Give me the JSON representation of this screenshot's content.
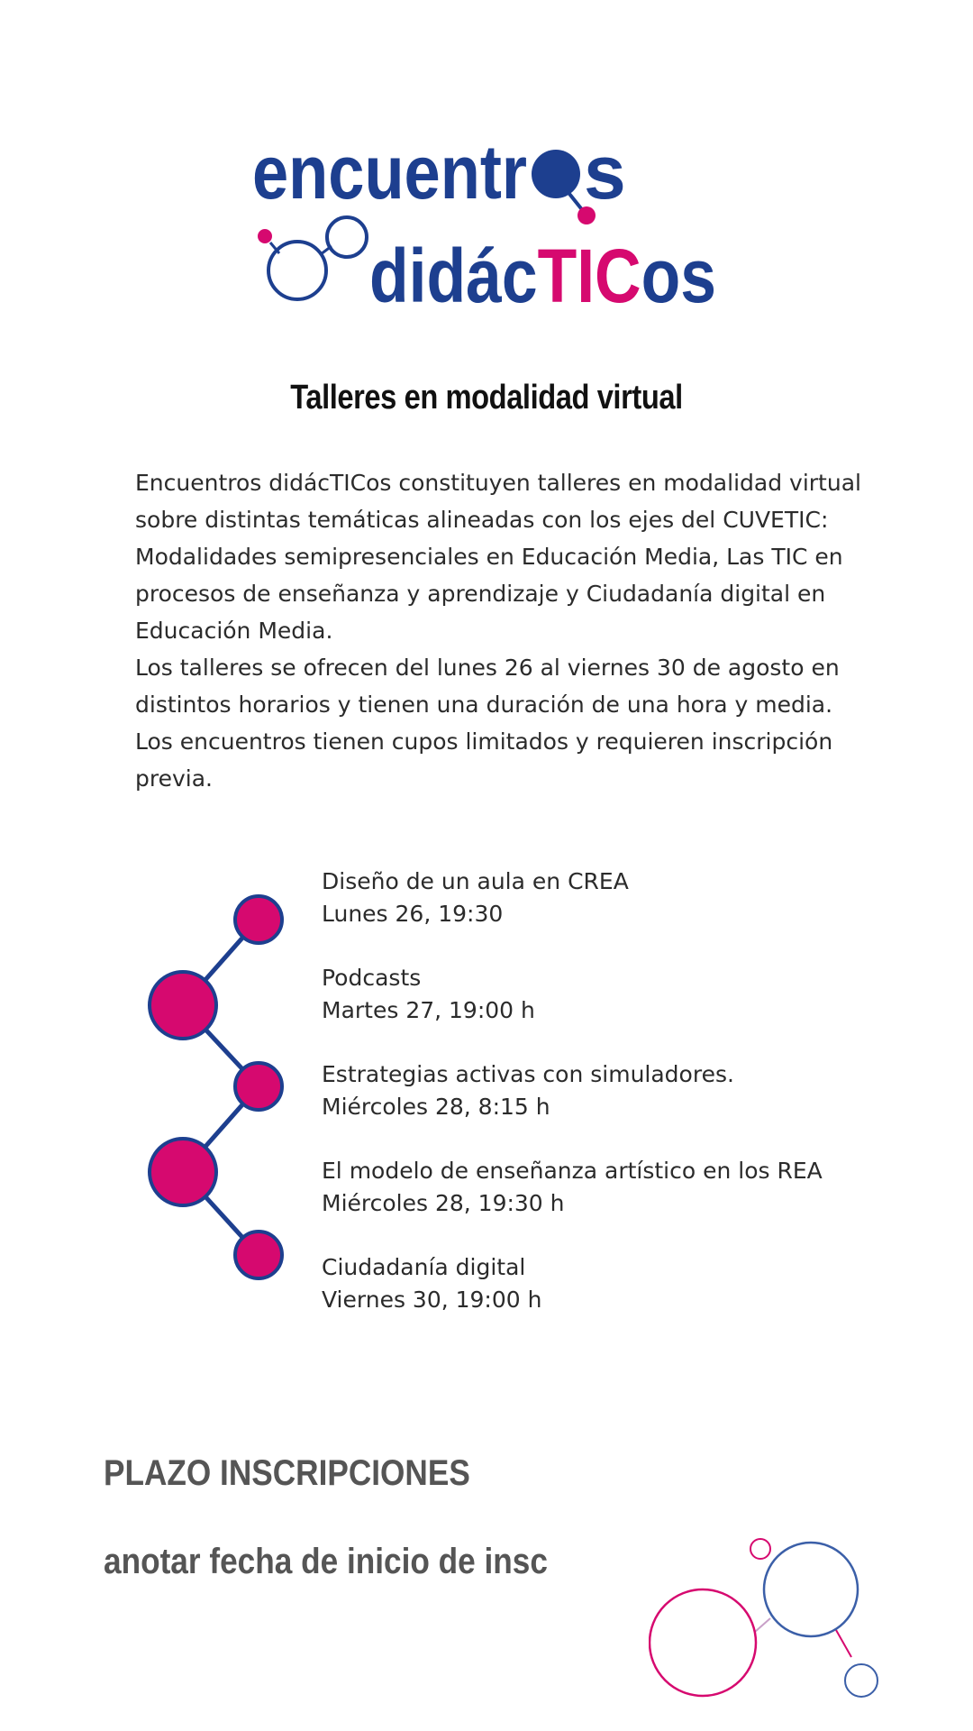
{
  "logo": {
    "line1": "encuentr",
    "line1_end": "s",
    "line2_blue1": "didác",
    "line2_pink": "TIC",
    "line2_blue2": "os",
    "colors": {
      "blue": "#1d3f8f",
      "pink": "#d6096f"
    }
  },
  "title": "Talleres en modalidad virtual",
  "intro": [
    "Encuentros didácTICos constituyen talleres en modalidad virtual sobre distintas temáticas alineadas con los ejes del CUVETIC: Modalidades semipresenciales en Educación Media, Las TIC en procesos de enseñanza y aprendizaje y Ciudadanía digital en Educación Media.",
    "Los talleres se ofrecen del lunes 26 al viernes 30 de agosto en distintos horarios y tienen una duración de una hora y media.",
    "Los encuentros tienen cupos limitados y requieren inscripción previa."
  ],
  "workshops": [
    {
      "name": "Diseño de un aula en CREA",
      "when": "Lunes 26, 19:30"
    },
    {
      "name": "Podcasts",
      "when": "Martes 27, 19:00 h"
    },
    {
      "name": "Estrategias activas con simuladores.",
      "when": "Miércoles 28, 8:15 h"
    },
    {
      "name": "El modelo de enseñanza artístico en los REA",
      "when": "Miércoles 28, 19:30 h"
    },
    {
      "name": "Ciudadanía digital",
      "when": "Viernes 30, 19:00 h"
    }
  ],
  "deadline": {
    "heading": "PLAZO INSCRIPCIONES",
    "note": "anotar fecha de inicio de insc"
  }
}
